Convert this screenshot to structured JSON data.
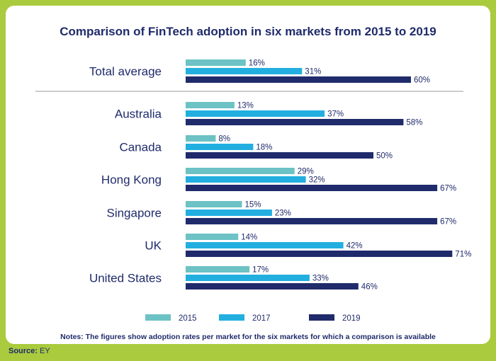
{
  "chart_data": {
    "type": "bar",
    "orientation": "horizontal",
    "title": "Comparison of FinTech adoption in six markets from 2015 to 2019",
    "categories": [
      "Total average",
      "Australia",
      "Canada",
      "Hong Kong",
      "Singapore",
      "UK",
      "United States"
    ],
    "series": [
      {
        "name": "2015",
        "values": [
          16,
          13,
          8,
          29,
          15,
          14,
          17
        ]
      },
      {
        "name": "2017",
        "values": [
          31,
          37,
          18,
          32,
          23,
          42,
          33
        ]
      },
      {
        "name": "2019",
        "values": [
          60,
          58,
          50,
          67,
          67,
          71,
          46
        ]
      }
    ],
    "value_suffix": "%",
    "legend_position": "bottom",
    "note": "Notes: The figures show adoption rates per market for the six markets for which a comparison is available",
    "colors": {
      "2015": "#6cc2c4",
      "2017": "#22afe0",
      "2019": "#1f2b6b"
    }
  },
  "source": {
    "label": "Source:",
    "value": "EY"
  }
}
